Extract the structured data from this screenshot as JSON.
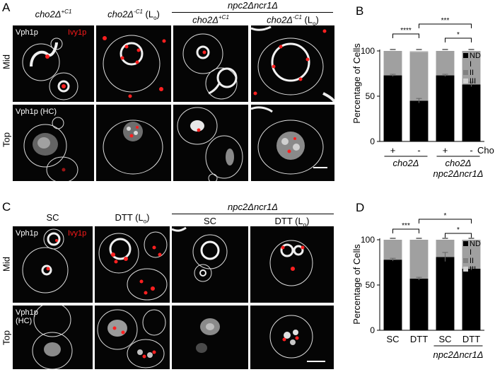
{
  "panelA": {
    "letter": "A",
    "columns": [
      {
        "base": "cho2Δ",
        "sup": "+C1",
        "suffix": ""
      },
      {
        "base": "cho2Δ",
        "sup": "-C1",
        "suffix": " (L",
        "sub": "o",
        "close": ")"
      },
      {
        "base": "cho2Δ",
        "sup": "+C1",
        "suffix": ""
      },
      {
        "base": "cho2Δ",
        "sup": "-C1",
        "suffix": " (L",
        "sub": "o",
        "close": ")"
      }
    ],
    "group_label": "npc2Δncr1Δ",
    "rows": [
      "Mid",
      "Top"
    ],
    "label_vph1p": "Vph1p",
    "label_ivy1p": "Ivy1p",
    "label_vph1p_hc": "Vph1p (HC)"
  },
  "panelC": {
    "letter": "C",
    "columns": [
      "SC",
      "DTT (L",
      "SC",
      "DTT (L"
    ],
    "col_sub": "o",
    "col_close": ")",
    "group_label": "npc2Δncr1Δ",
    "rows": [
      "Mid",
      "Top"
    ],
    "label_vph1p": "Vph1p",
    "label_ivy1p": "Ivy1p",
    "label_hc_1": "Vph1p",
    "label_hc_2": "(HC)"
  },
  "chart_data": [
    {
      "type": "bar",
      "panel": "B",
      "stacked": true,
      "categories": [
        "cho2Δ +",
        "cho2Δ -",
        "npc2Δncr1Δ cho2Δ +",
        "npc2Δncr1Δ cho2Δ -"
      ],
      "x_tick_labels": [
        "+",
        "-",
        "+",
        "-"
      ],
      "x_row_label": "Cho",
      "group_labels": [
        "cho2Δ",
        "cho2Δ",
        "npc2Δncr1Δ"
      ],
      "ylabel": "Percentage of Cells",
      "ylim": [
        0,
        100
      ],
      "yticks": [
        0,
        50,
        100
      ],
      "series": [
        {
          "name": "ND",
          "color": "#000000",
          "values": [
            73,
            45,
            73,
            63
          ]
        },
        {
          "name": "I",
          "color": "#a0a0a0",
          "values": [
            27,
            54,
            27,
            37
          ]
        },
        {
          "name": "II",
          "color": "#808080",
          "values": [
            0,
            0,
            0,
            0
          ]
        },
        {
          "name": "III",
          "color": "#d0d0d0",
          "values": [
            0,
            1,
            0,
            0
          ]
        }
      ],
      "error_bars": [
        1.2,
        2.5,
        1.2,
        2.5
      ],
      "significance": [
        {
          "from": 0,
          "to": 1,
          "label": "****"
        },
        {
          "from": 1,
          "to": 3,
          "label": "***"
        },
        {
          "from": 2,
          "to": 3,
          "label": "*"
        }
      ],
      "legend_position": "right"
    },
    {
      "type": "bar",
      "panel": "D",
      "stacked": true,
      "categories": [
        "SC",
        "DTT",
        "npc2Δncr1Δ SC",
        "npc2Δncr1Δ DTT"
      ],
      "x_tick_labels": [
        "SC",
        "DTT",
        "SC",
        "DTT"
      ],
      "group_labels": [
        "npc2Δncr1Δ"
      ],
      "ylabel": "Percentage of Cells",
      "ylim": [
        0,
        100
      ],
      "yticks": [
        0,
        50,
        100
      ],
      "series": [
        {
          "name": "ND",
          "color": "#000000",
          "values": [
            78,
            57,
            81,
            68
          ]
        },
        {
          "name": "I",
          "color": "#a0a0a0",
          "values": [
            22,
            43,
            19,
            32
          ]
        },
        {
          "name": "II",
          "color": "#808080",
          "values": [
            0,
            0,
            0,
            0
          ]
        },
        {
          "name": "III",
          "color": "#d0d0d0",
          "values": [
            0,
            0,
            0,
            0
          ]
        }
      ],
      "error_bars": [
        1.5,
        1.5,
        5,
        1.5
      ],
      "significance": [
        {
          "from": 0,
          "to": 1,
          "label": "***"
        },
        {
          "from": 1,
          "to": 3,
          "label": "*"
        },
        {
          "from": 2,
          "to": 3,
          "label": "*"
        }
      ],
      "legend_position": "right"
    }
  ]
}
